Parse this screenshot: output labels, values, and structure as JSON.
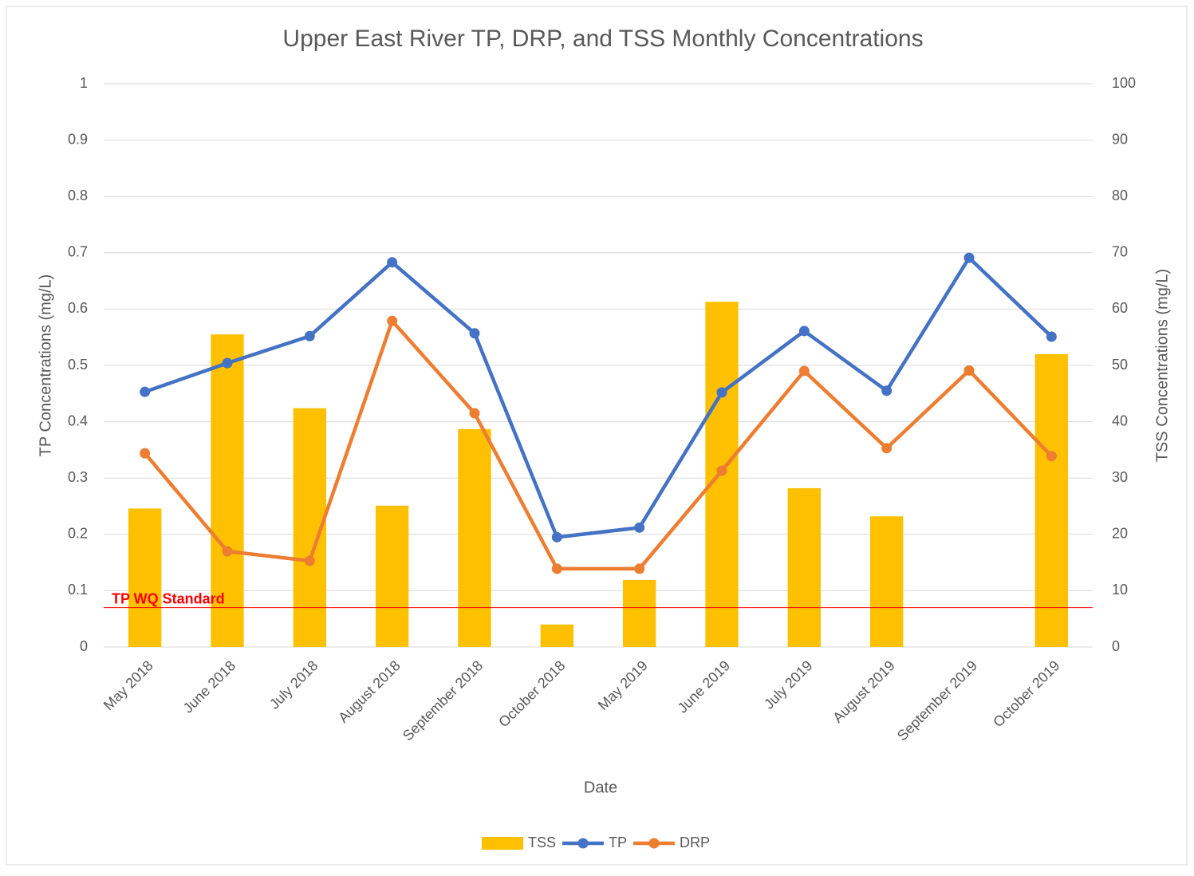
{
  "chart_data": {
    "type": "bar",
    "title": "Upper East River TP, DRP, and TSS Monthly Concentrations",
    "x_label": "Date",
    "y_label": "TP Concentrations (mg/L)",
    "y2_label": "TSS Concentrations (mg/L)",
    "categories": [
      "May 2018",
      "June 2018",
      "July 2018",
      "August 2018",
      "September 2018",
      "October 2018",
      "May 2019",
      "June 2019",
      "July 2019",
      "August 2019",
      "September 2019",
      "October 2019"
    ],
    "series": [
      {
        "name": "TSS",
        "type": "bar",
        "axis": "y2",
        "color": "#FFC000",
        "values": [
          24.6,
          55.5,
          42.4,
          25.1,
          38.7,
          4.0,
          11.9,
          61.3,
          28.2,
          23.2,
          null,
          52.0
        ]
      },
      {
        "name": "TP",
        "type": "line",
        "color": "#4472C4",
        "values": [
          0.453,
          0.504,
          0.552,
          0.683,
          0.557,
          0.195,
          0.212,
          0.452,
          0.561,
          0.455,
          0.691,
          0.551
        ]
      },
      {
        "name": "DRP",
        "type": "line",
        "color": "#ED7D31",
        "values": [
          0.344,
          0.17,
          0.153,
          0.579,
          0.415,
          0.139,
          0.139,
          0.313,
          0.49,
          0.353,
          0.491,
          0.339
        ]
      }
    ],
    "reference_lines": [
      {
        "label": "TP WQ Standard",
        "value": 0.07,
        "color": "#FF0000"
      }
    ],
    "ylim": [
      0,
      1
    ],
    "yticks": [
      0,
      0.1,
      0.2,
      0.3,
      0.4,
      0.5,
      0.6,
      0.7,
      0.8,
      0.9,
      1
    ],
    "y2lim": [
      0,
      100
    ],
    "y2ticks": [
      0,
      10,
      20,
      30,
      40,
      50,
      60,
      70,
      80,
      90,
      100
    ],
    "grid": true,
    "legend": "bottom"
  }
}
